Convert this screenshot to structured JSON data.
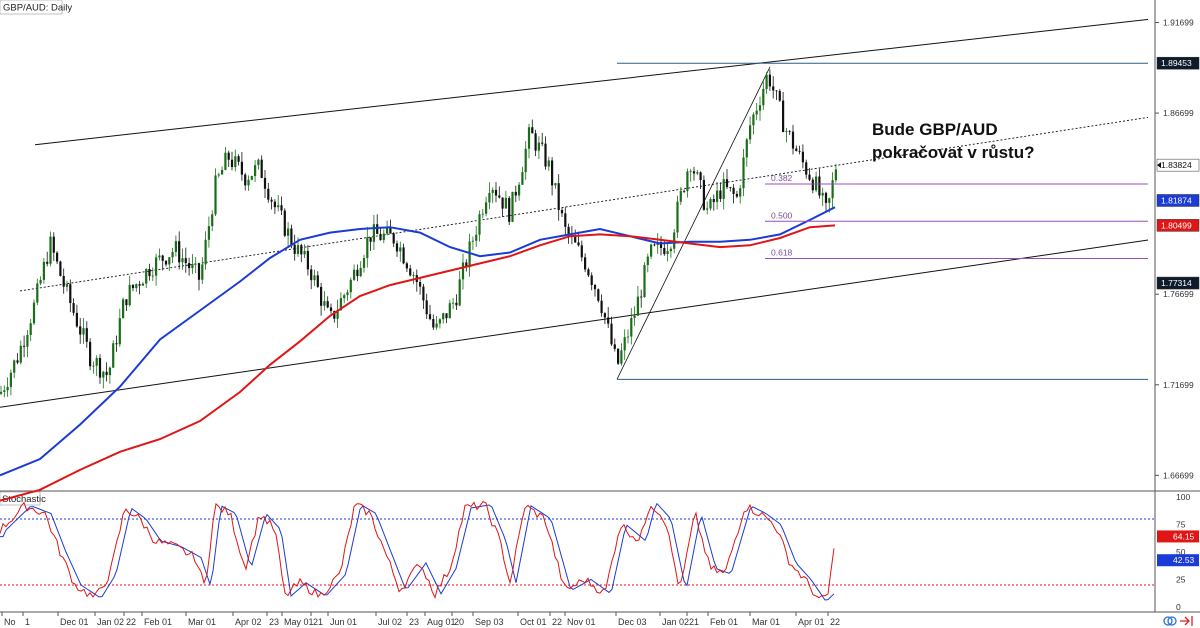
{
  "chart_data": [
    {
      "type": "candlestick",
      "title": "GBP/AUD: Daily",
      "annotation": [
        "Bude GBP/AUD",
        "pokračovat v růstu?"
      ],
      "x_ticks": [
        "No",
        "1",
        "Dec 01",
        "Jan 02",
        "22",
        "Feb 01",
        "Mar 01",
        "Apr 02",
        "23",
        "May 01",
        "21",
        "Jun 01",
        "Jul 02",
        "23",
        "Aug 01",
        "20",
        "Sep 03",
        "Oct 01",
        "22",
        "Nov 01",
        "Dec 03",
        "Jan 02",
        "21",
        "Feb 01",
        "Mar 01",
        "Apr 01",
        "22"
      ],
      "y_ticks": [
        1.91699,
        1.86699,
        1.76699,
        1.71699,
        1.66699
      ],
      "ylim": [
        1.66,
        1.925
      ],
      "price_tags": [
        {
          "value": "1.89453",
          "bg": "#0d1b2a",
          "fg": "#ffffff"
        },
        {
          "value": "1.83824",
          "bg": "#ffffff",
          "fg": "#111111"
        },
        {
          "value": "1.81874",
          "bg": "#1a3bd6",
          "fg": "#ffffff"
        },
        {
          "value": "1.80499",
          "bg": "#e01616",
          "fg": "#ffffff"
        },
        {
          "value": "1.77314",
          "bg": "#0d1b2a",
          "fg": "#ffffff"
        }
      ],
      "fibonacci": {
        "levels": [
          "0.382",
          "0.500",
          "0.618"
        ],
        "high": 1.89453,
        "low": 1.72,
        "color": "#9c4dbd"
      },
      "series": [
        {
          "name": "",
          "kind": "ma",
          "color": "#1a3bd6",
          "x": [
            0,
            40,
            80,
            120,
            160,
            200,
            240,
            270,
            300,
            330,
            360,
            390,
            420,
            450,
            480,
            510,
            540,
            570,
            600,
            630,
            660,
            690,
            720,
            750,
            780,
            810,
            835
          ],
          "y": [
            1.667,
            1.676,
            1.695,
            1.716,
            1.742,
            1.758,
            1.774,
            1.787,
            1.797,
            1.801,
            1.803,
            1.804,
            1.801,
            1.793,
            1.788,
            1.79,
            1.797,
            1.8,
            1.803,
            1.799,
            1.795,
            1.796,
            1.796,
            1.797,
            1.8,
            1.808,
            1.815
          ]
        },
        {
          "name": "",
          "kind": "ma",
          "color": "#e01616",
          "x": [
            0,
            40,
            80,
            120,
            160,
            200,
            240,
            270,
            300,
            330,
            360,
            390,
            420,
            450,
            480,
            510,
            540,
            570,
            600,
            630,
            660,
            690,
            720,
            750,
            780,
            810,
            835
          ],
          "y": [
            1.653,
            1.659,
            1.67,
            1.68,
            1.687,
            1.697,
            1.713,
            1.728,
            1.741,
            1.755,
            1.766,
            1.772,
            1.776,
            1.78,
            1.784,
            1.788,
            1.794,
            1.799,
            1.8,
            1.799,
            1.797,
            1.795,
            1.793,
            1.794,
            1.798,
            1.804,
            1.805
          ]
        }
      ]
    },
    {
      "type": "line",
      "title": "Stochastic",
      "ylim": [
        0,
        100
      ],
      "y_ticks": [
        100,
        75,
        50,
        25,
        0
      ],
      "levels": [
        80,
        20
      ],
      "value_tags": [
        {
          "value": "64.15",
          "bg": "#e01616",
          "fg": "#ffffff"
        },
        {
          "value": "42.53",
          "bg": "#1a3bd6",
          "fg": "#ffffff"
        }
      ]
    }
  ],
  "colors": {
    "up": "#1a6e1a",
    "down": "#111111",
    "channel": "#111111",
    "hline": "#2c5d8a",
    "fib": "#9c4dbd"
  }
}
